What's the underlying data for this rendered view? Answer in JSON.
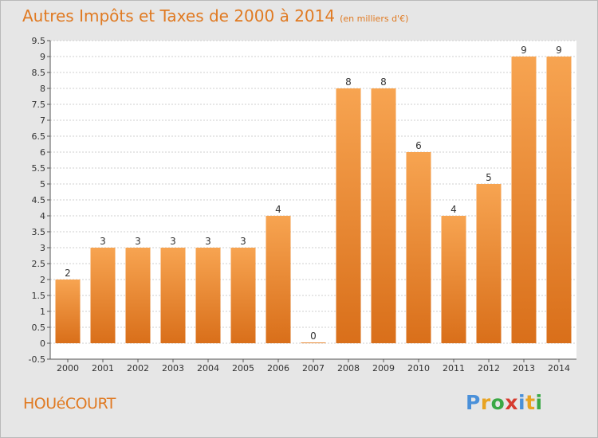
{
  "title": "Autres Impôts et Taxes de 2000 à 2014",
  "title_unit": "(en milliers d'€)",
  "commune": "HOUéCOURT",
  "logo": {
    "letters": [
      "P",
      "r",
      "o",
      "x",
      "i",
      "t",
      "i"
    ],
    "colors": [
      "#4a90d9",
      "#e8a321",
      "#3aa845",
      "#d63b2f",
      "#4a90d9",
      "#e8a321",
      "#3aa845"
    ]
  },
  "colors": {
    "bar_top": "#f7a451",
    "bar_bottom": "#d96f1a",
    "accent": "#e07a22"
  },
  "chart_data": {
    "type": "bar",
    "categories": [
      "2000",
      "2001",
      "2002",
      "2003",
      "2004",
      "2005",
      "2006",
      "2007",
      "2008",
      "2009",
      "2010",
      "2011",
      "2012",
      "2013",
      "2014"
    ],
    "values": [
      2,
      3,
      3,
      3,
      3,
      3,
      4,
      0,
      8,
      8,
      6,
      4,
      5,
      9,
      9
    ],
    "value_labels": [
      "2",
      "3",
      "3",
      "3",
      "3",
      "3",
      "4",
      "0",
      "8",
      "8",
      "6",
      "4",
      "5",
      "9",
      "9"
    ],
    "y_ticks": [
      "-0.5",
      "0",
      "0.5",
      "1",
      "1.5",
      "2",
      "2.5",
      "3",
      "3.5",
      "4",
      "4.5",
      "5",
      "5.5",
      "6",
      "6.5",
      "7",
      "7.5",
      "8",
      "8.5",
      "9",
      "9.5"
    ],
    "ylim": [
      -0.5,
      9.5
    ],
    "grid": true
  }
}
